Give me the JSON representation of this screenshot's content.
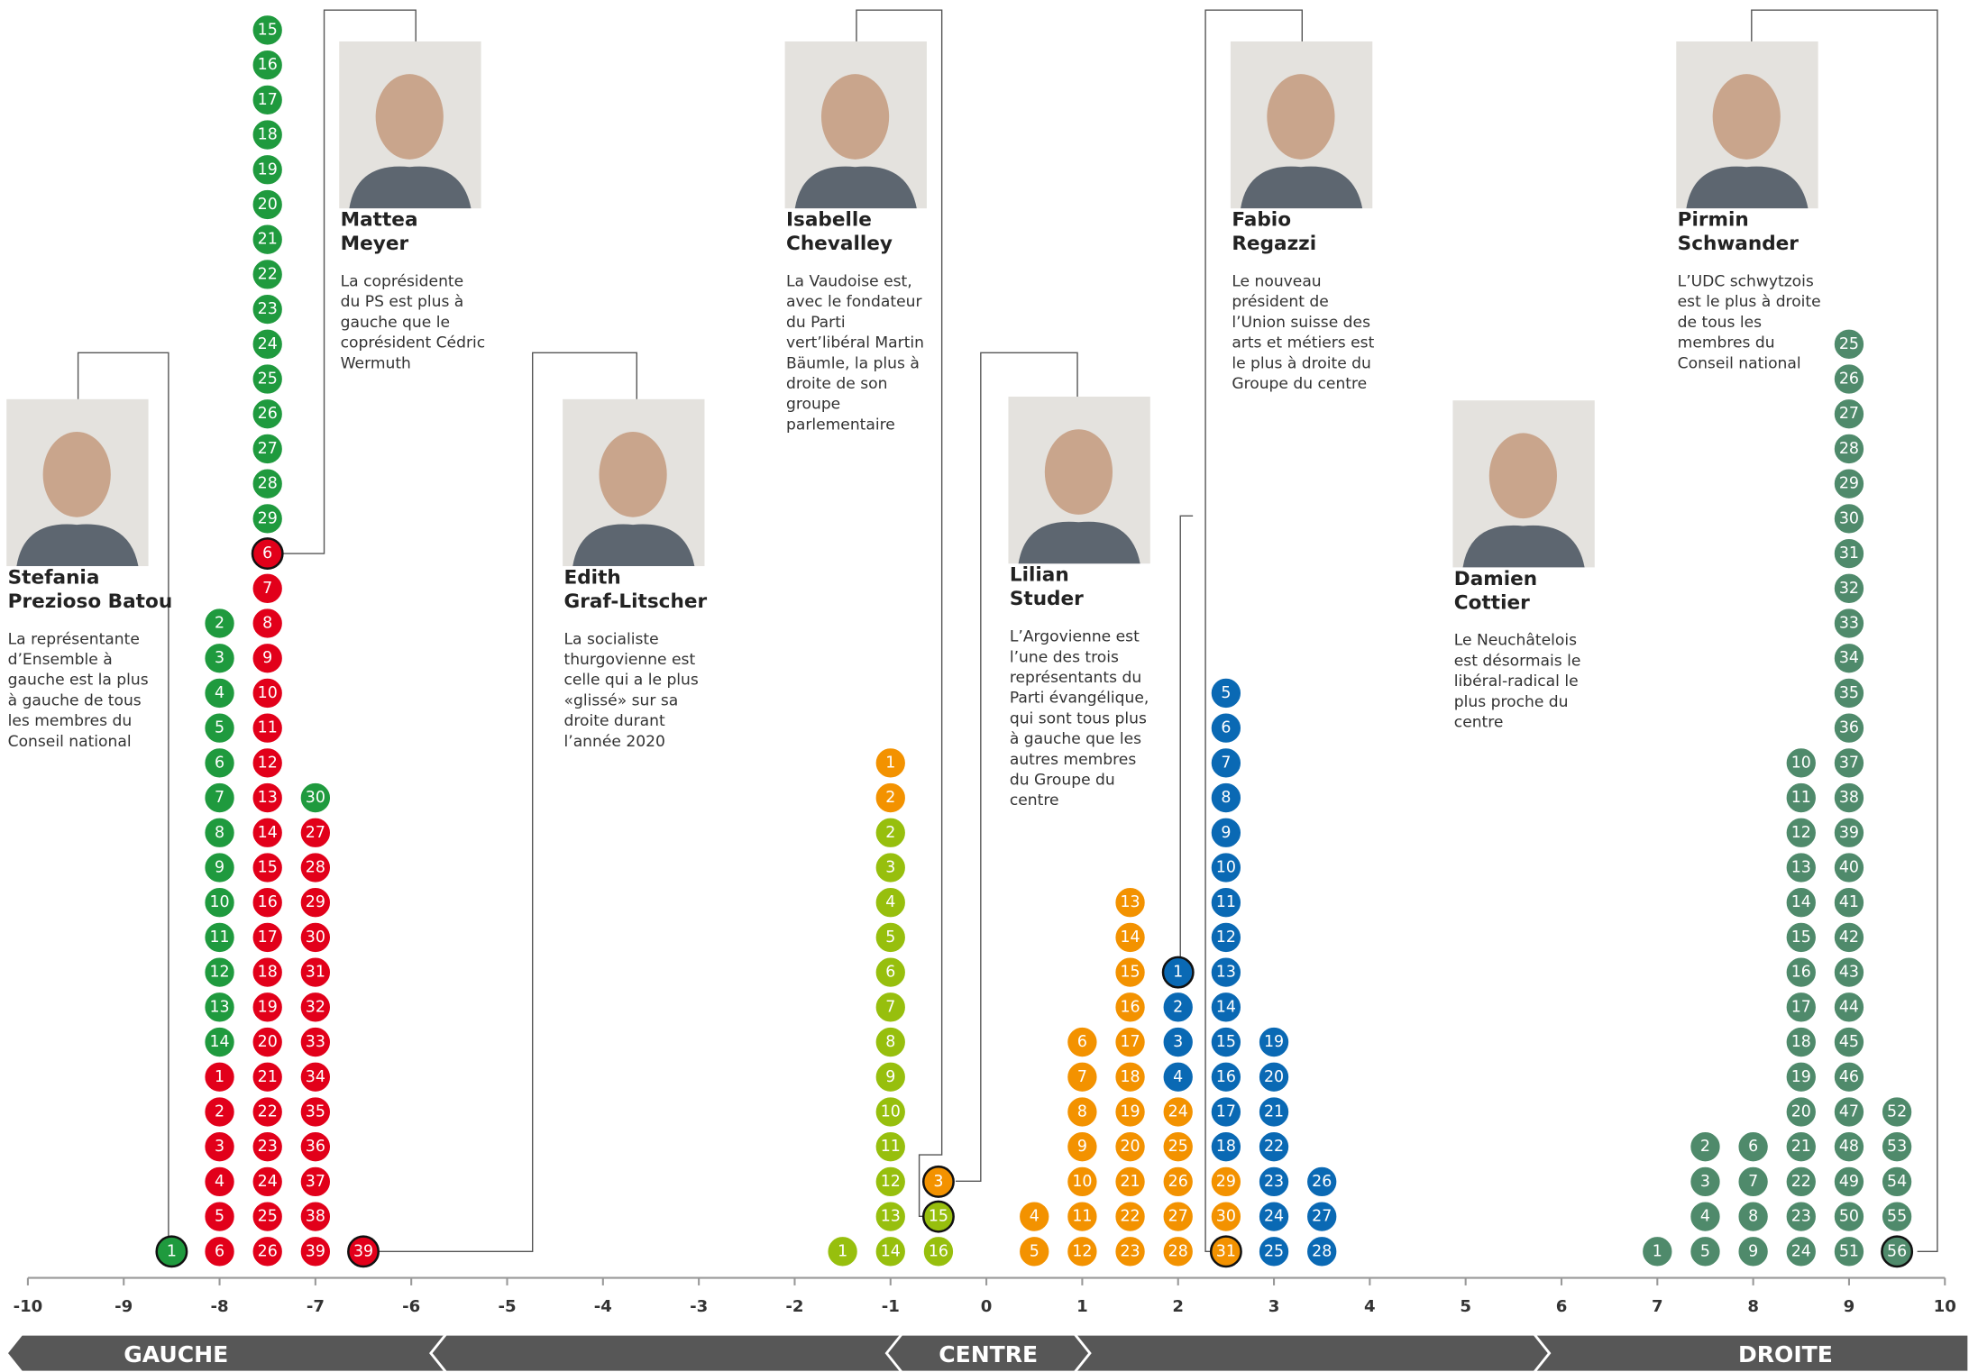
{
  "chart_data": {
    "type": "dotstack",
    "xlim": [
      -10,
      10
    ],
    "xticks": [
      -10,
      -9,
      -8,
      -7,
      -6,
      -5,
      -4,
      -3,
      -2,
      -1,
      0,
      1,
      2,
      3,
      4,
      5,
      6,
      7,
      8,
      9,
      10
    ],
    "columns": [
      {
        "x": -8.5,
        "groups": [
          {
            "color": "#1f9a3e",
            "labels": [
              1
            ]
          }
        ],
        "outlined": [
          0
        ]
      },
      {
        "x": -8,
        "groups": [
          {
            "color": "#e2001a",
            "labels": [
              6,
              5,
              4,
              3,
              2,
              1
            ]
          },
          {
            "color": "#1f9a3e",
            "labels": [
              14,
              13,
              12,
              11,
              10,
              9,
              8,
              7,
              6,
              5,
              4,
              3,
              2
            ]
          }
        ]
      },
      {
        "x": -7.5,
        "groups": [
          {
            "color": "#e2001a",
            "labels": [
              26,
              25,
              24,
              23,
              22,
              21,
              20,
              19,
              18,
              17,
              16,
              15,
              14,
              13,
              12,
              11,
              10,
              9,
              8,
              7,
              6
            ]
          },
          {
            "color": "#1f9a3e",
            "labels": [
              29,
              28,
              27,
              26,
              25,
              24,
              23,
              22,
              21,
              20,
              19,
              18,
              17,
              16,
              15
            ]
          }
        ],
        "outlined": [
          20
        ]
      },
      {
        "x": -7,
        "groups": [
          {
            "color": "#e2001a",
            "labels": [
              39,
              38,
              37,
              36,
              35,
              34,
              33,
              32,
              31,
              30,
              29,
              28,
              27
            ]
          },
          {
            "color": "#1f9a3e",
            "labels": [
              30
            ]
          }
        ]
      },
      {
        "x": -6.5,
        "groups": [
          {
            "color": "#e2001a",
            "labels": [
              39
            ]
          }
        ],
        "outlined": [
          0
        ]
      },
      {
        "x": -1.5,
        "groups": [
          {
            "color": "#97bf0d",
            "labels": [
              1
            ]
          }
        ]
      },
      {
        "x": -1,
        "groups": [
          {
            "color": "#97bf0d",
            "labels": [
              14,
              13,
              12,
              11,
              10,
              9,
              8,
              7,
              6,
              5,
              4,
              3,
              2
            ]
          },
          {
            "color": "#f39200",
            "labels": [
              2,
              1
            ]
          }
        ]
      },
      {
        "x": -0.5,
        "groups": [
          {
            "color": "#97bf0d",
            "labels": [
              16,
              15
            ]
          },
          {
            "color": "#f39200",
            "labels": [
              3
            ]
          }
        ],
        "outlined": [
          1,
          2
        ]
      },
      {
        "x": 0.5,
        "groups": [
          {
            "color": "#f39200",
            "labels": [
              5,
              4
            ]
          }
        ]
      },
      {
        "x": 1,
        "groups": [
          {
            "color": "#f39200",
            "labels": [
              12,
              11,
              10,
              9,
              8,
              7,
              6
            ]
          }
        ]
      },
      {
        "x": 1.5,
        "groups": [
          {
            "color": "#f39200",
            "labels": [
              23,
              22,
              21,
              20,
              19,
              18,
              17,
              16,
              15,
              14,
              13
            ]
          }
        ]
      },
      {
        "x": 2,
        "groups": [
          {
            "color": "#f39200",
            "labels": [
              28,
              27,
              26,
              25,
              24
            ]
          },
          {
            "color": "#0a69b4",
            "labels": [
              4,
              3,
              2,
              1
            ]
          }
        ],
        "outlined": [
          8
        ]
      },
      {
        "x": 2.5,
        "groups": [
          {
            "color": "#f39200",
            "labels": [
              31,
              30,
              29
            ]
          },
          {
            "color": "#0a69b4",
            "labels": [
              18,
              17,
              16,
              15,
              14,
              13,
              12,
              11,
              10,
              9,
              8,
              7,
              6,
              5
            ]
          }
        ],
        "outlined": [
          0
        ]
      },
      {
        "x": 3,
        "groups": [
          {
            "color": "#0a69b4",
            "labels": [
              25,
              24,
              23,
              22,
              21,
              20,
              19
            ]
          }
        ]
      },
      {
        "x": 3.5,
        "groups": [
          {
            "color": "#0a69b4",
            "labels": [
              28,
              27,
              26
            ]
          }
        ]
      },
      {
        "x": 7,
        "groups": [
          {
            "color": "#4f8a6b",
            "labels": [
              1
            ]
          }
        ]
      },
      {
        "x": 7.5,
        "groups": [
          {
            "color": "#4f8a6b",
            "labels": [
              5,
              4,
              3,
              2
            ]
          }
        ]
      },
      {
        "x": 8,
        "groups": [
          {
            "color": "#4f8a6b",
            "labels": [
              9,
              8,
              7,
              6
            ]
          }
        ]
      },
      {
        "x": 8.5,
        "groups": [
          {
            "color": "#4f8a6b",
            "labels": [
              24,
              23,
              22,
              21,
              20,
              19,
              18,
              17,
              16,
              15,
              14,
              13,
              12,
              11,
              10
            ]
          }
        ]
      },
      {
        "x": 9,
        "groups": [
          {
            "color": "#4f8a6b",
            "labels": [
              51,
              50,
              49,
              48,
              47,
              46,
              45,
              44,
              43,
              42,
              41,
              40,
              39,
              38,
              37,
              36,
              35,
              34,
              33,
              32,
              31,
              30,
              29,
              28,
              27,
              26,
              25
            ]
          }
        ]
      },
      {
        "x": 9.5,
        "groups": [
          {
            "color": "#4f8a6b",
            "labels": [
              56,
              55,
              54,
              53,
              52
            ]
          }
        ],
        "outlined": [
          0
        ]
      }
    ],
    "zones": [
      "GAUCHE",
      "CENTRE",
      "DROITE"
    ],
    "profiles": [
      {
        "name": [
          "Stefania",
          "Prezioso Batou"
        ],
        "text": [
          "La représentante",
          "d’Ensemble à",
          "gauche est la plus",
          "à gauche de tous",
          "les membres du",
          "Conseil national"
        ]
      },
      {
        "name": [
          "Mattea",
          "Meyer"
        ],
        "text": [
          "La coprésidente",
          "du PS est plus à",
          "gauche que le",
          "coprésident Cédric",
          "Wermuth"
        ]
      },
      {
        "name": [
          "Edith",
          "Graf-Litscher"
        ],
        "text": [
          "La socialiste",
          "thurgovienne est",
          "celle qui a le plus",
          "«glissé» sur sa",
          "droite durant",
          "l’année 2020"
        ]
      },
      {
        "name": [
          "Isabelle",
          "Chevalley"
        ],
        "text": [
          "La Vaudoise est,",
          "avec le fondateur",
          "du Parti",
          "vert’libéral Martin",
          "Bäumle, la plus à",
          "droite de son",
          "groupe",
          "parlementaire"
        ]
      },
      {
        "name": [
          "Lilian",
          "Studer"
        ],
        "text": [
          "L’Argovienne est",
          "l’une des trois",
          "représentants du",
          "Parti évangélique,",
          "qui sont tous plus",
          "à gauche que les",
          "autres membres",
          "du Groupe du",
          "centre"
        ]
      },
      {
        "name": [
          "Fabio",
          "Regazzi"
        ],
        "text": [
          "Le nouveau",
          "président de",
          "l’Union suisse des",
          "arts et métiers est",
          "le plus à droite du",
          "Groupe du centre"
        ]
      },
      {
        "name": [
          "Damien",
          "Cottier"
        ],
        "text": [
          "Le Neuchâtelois",
          "est désormais le",
          "libéral-radical le",
          "plus proche du",
          "centre"
        ]
      },
      {
        "name": [
          "Pirmin",
          "Schwander"
        ],
        "text": [
          "L’UDC schwytzois",
          "est le plus à droite",
          "de tous les",
          "membres du",
          "Conseil national"
        ]
      }
    ]
  }
}
